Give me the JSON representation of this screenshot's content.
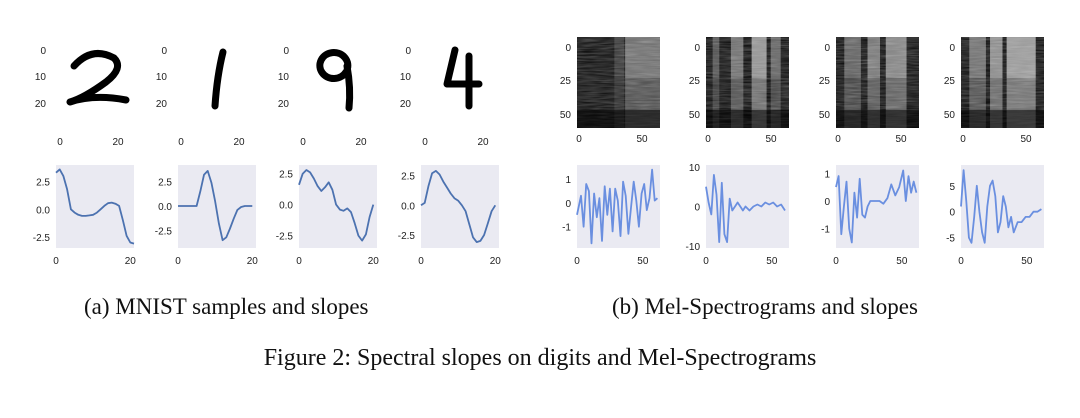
{
  "captions": {
    "sub_a": "(a) MNIST samples and slopes",
    "sub_b": "(b) Mel-Spectrograms and slopes",
    "main": "Figure 2: Spectral slopes on digits and Mel-Spectrograms"
  },
  "colors": {
    "line": "#4c72b0",
    "line_b": "#6a8fe0",
    "plot_bg": "#eaeaf2"
  },
  "image_panels": {
    "mnist": [
      {
        "digit": "2",
        "yticks": [
          "0",
          "10",
          "20"
        ],
        "xticks": [
          "0",
          "20"
        ]
      },
      {
        "digit": "1",
        "yticks": [
          "0",
          "10",
          "20"
        ],
        "xticks": [
          "0",
          "20"
        ]
      },
      {
        "digit": "9",
        "yticks": [
          "0",
          "10",
          "20"
        ],
        "xticks": [
          "0",
          "20"
        ]
      },
      {
        "digit": "4",
        "yticks": [
          "0",
          "10",
          "20"
        ],
        "xticks": [
          "0",
          "20"
        ]
      }
    ],
    "mel": [
      {
        "yticks": [
          "0",
          "25",
          "50"
        ],
        "xticks": [
          "0",
          "50"
        ]
      },
      {
        "yticks": [
          "0",
          "25",
          "50"
        ],
        "xticks": [
          "0",
          "50"
        ]
      },
      {
        "yticks": [
          "0",
          "25",
          "50"
        ],
        "xticks": [
          "0",
          "50"
        ]
      },
      {
        "yticks": [
          "0",
          "25",
          "50"
        ],
        "xticks": [
          "0",
          "50"
        ]
      }
    ]
  },
  "chart_data": [
    {
      "type": "line",
      "panel": "a1",
      "xlim": [
        0,
        21
      ],
      "ylim": [
        -3.5,
        4
      ],
      "yticks": [
        2.5,
        0.0,
        -2.5
      ],
      "ytick_labels": [
        "2.5",
        "0.0",
        "-2.5"
      ],
      "xticks": [
        0,
        20
      ],
      "xtick_labels": [
        "0",
        "20"
      ],
      "x": [
        0,
        1,
        2,
        3,
        4,
        5,
        6,
        7,
        8,
        9,
        10,
        11,
        12,
        13,
        14,
        15,
        16,
        17,
        18,
        19,
        20,
        21
      ],
      "y": [
        3.3,
        3.6,
        3.0,
        1.8,
        0.0,
        -0.3,
        -0.5,
        -0.6,
        -0.6,
        -0.55,
        -0.5,
        -0.3,
        0.0,
        0.3,
        0.55,
        0.6,
        0.5,
        0.3,
        -1.0,
        -2.4,
        -3.0,
        -3.1
      ]
    },
    {
      "type": "line",
      "panel": "a2",
      "xlim": [
        0,
        21
      ],
      "ylim": [
        -4.3,
        4.2
      ],
      "yticks": [
        2.5,
        0.0,
        -2.5
      ],
      "ytick_labels": [
        "2.5",
        "0.0",
        "-2.5"
      ],
      "xticks": [
        0,
        20
      ],
      "xtick_labels": [
        "0",
        "20"
      ],
      "x": [
        0,
        1,
        2,
        3,
        4,
        5,
        6,
        7,
        8,
        9,
        10,
        11,
        12,
        13,
        14,
        15,
        16,
        17,
        18,
        19,
        20
      ],
      "y": [
        0,
        0,
        0,
        0,
        0,
        0,
        1.5,
        3.2,
        3.6,
        2.4,
        0.5,
        -1.8,
        -3.5,
        -3.2,
        -2.3,
        -1.3,
        -0.4,
        -0.1,
        0,
        0,
        0
      ]
    },
    {
      "type": "line",
      "panel": "a3",
      "xlim": [
        0,
        21
      ],
      "ylim": [
        -3.5,
        3.2
      ],
      "yticks": [
        2.5,
        0.0,
        -2.5
      ],
      "ytick_labels": [
        "2.5",
        "0.0",
        "-2.5"
      ],
      "xticks": [
        0,
        20
      ],
      "xtick_labels": [
        "0",
        "20"
      ],
      "x": [
        0,
        1,
        2,
        3,
        4,
        5,
        6,
        7,
        8,
        9,
        10,
        11,
        12,
        13,
        14,
        15,
        16,
        17,
        18,
        19,
        20
      ],
      "y": [
        1.6,
        2.5,
        2.8,
        2.6,
        2.1,
        1.5,
        1.1,
        1.4,
        1.8,
        1.2,
        0.0,
        -0.4,
        -0.5,
        -0.3,
        -0.6,
        -1.5,
        -2.5,
        -2.9,
        -2.4,
        -1.0,
        0.0
      ]
    },
    {
      "type": "line",
      "panel": "a4",
      "xlim": [
        0,
        21
      ],
      "ylim": [
        -3.6,
        3.4
      ],
      "yticks": [
        2.5,
        0.0,
        -2.5
      ],
      "ytick_labels": [
        "2.5",
        "0.0",
        "-2.5"
      ],
      "xticks": [
        0,
        20
      ],
      "xtick_labels": [
        "0",
        "20"
      ],
      "x": [
        0,
        1,
        2,
        3,
        4,
        5,
        6,
        7,
        8,
        9,
        10,
        11,
        12,
        13,
        14,
        15,
        16,
        17,
        18,
        19,
        20
      ],
      "y": [
        0,
        0.2,
        1.6,
        2.7,
        2.9,
        2.6,
        2.0,
        1.5,
        1.0,
        0.6,
        0.4,
        0.0,
        -0.5,
        -1.6,
        -2.7,
        -3.1,
        -3.0,
        -2.5,
        -1.5,
        -0.5,
        0.0
      ]
    },
    {
      "type": "line",
      "panel": "b1",
      "xlim": [
        0,
        63
      ],
      "ylim": [
        -1.9,
        1.6
      ],
      "yticks": [
        1,
        0,
        -1
      ],
      "ytick_labels": [
        "1",
        "0",
        "-1"
      ],
      "xticks": [
        0,
        50
      ],
      "xtick_labels": [
        "0",
        "50"
      ],
      "x": [
        0,
        3,
        5,
        7,
        9,
        11,
        13,
        15,
        17,
        19,
        21,
        23,
        25,
        27,
        29,
        31,
        33,
        35,
        37,
        39,
        41,
        43,
        45,
        47,
        49,
        51,
        53,
        55,
        57,
        59,
        61
      ],
      "y": [
        -0.5,
        0.3,
        -1.0,
        0.8,
        0.5,
        -1.7,
        0.4,
        -0.6,
        0.2,
        -1.6,
        0.7,
        -0.5,
        0.6,
        -1.2,
        0.6,
        0.1,
        -1.4,
        0.9,
        0.3,
        -1.3,
        -0.2,
        0.9,
        0.1,
        -1.0,
        0.4,
        0.8,
        -0.3,
        0.2,
        1.4,
        0.1,
        0.2
      ]
    },
    {
      "type": "line",
      "panel": "b2",
      "xlim": [
        0,
        63
      ],
      "ylim": [
        -10.5,
        10.5
      ],
      "yticks": [
        10,
        0,
        -10
      ],
      "ytick_labels": [
        "10",
        "0",
        "-10"
      ],
      "xticks": [
        0,
        50
      ],
      "xtick_labels": [
        "0",
        "50"
      ],
      "x": [
        0,
        2,
        4,
        6,
        8,
        10,
        12,
        14,
        16,
        18,
        20,
        22,
        24,
        26,
        28,
        30,
        33,
        36,
        39,
        42,
        45,
        48,
        51,
        54,
        57,
        60
      ],
      "y": [
        5,
        1,
        -2,
        8,
        3,
        -9,
        6,
        -7,
        -9,
        2,
        -1,
        0,
        1,
        0,
        -1,
        0,
        -1,
        0,
        0.5,
        0,
        1,
        0.5,
        1,
        0,
        0.5,
        -1
      ]
    },
    {
      "type": "line",
      "panel": "b3",
      "xlim": [
        0,
        63
      ],
      "ylim": [
        -1.7,
        1.3
      ],
      "yticks": [
        1,
        0,
        -1
      ],
      "ytick_labels": [
        "1",
        "0",
        "-1"
      ],
      "xticks": [
        0,
        50
      ],
      "xtick_labels": [
        "0",
        "50"
      ],
      "x": [
        0,
        2,
        4,
        6,
        8,
        10,
        12,
        14,
        16,
        18,
        20,
        22,
        24,
        26,
        28,
        30,
        33,
        36,
        39,
        42,
        45,
        48,
        51,
        53,
        55,
        57,
        59,
        61
      ],
      "y": [
        0.5,
        0.9,
        -1.2,
        -0.2,
        0.7,
        -1.0,
        -1.5,
        0.3,
        -0.6,
        0.8,
        -0.5,
        -0.6,
        -0.2,
        0.0,
        0.0,
        0.0,
        0.0,
        -0.1,
        0.1,
        0.6,
        0.2,
        0.5,
        1.1,
        0.0,
        0.9,
        0.3,
        0.7,
        0.3
      ]
    },
    {
      "type": "line",
      "panel": "b4",
      "xlim": [
        0,
        63
      ],
      "ylim": [
        -7,
        9
      ],
      "yticks": [
        5,
        0,
        -5
      ],
      "ytick_labels": [
        "5",
        "0",
        "-5"
      ],
      "xticks": [
        0,
        50
      ],
      "xtick_labels": [
        "0",
        "50"
      ],
      "x": [
        0,
        2,
        4,
        6,
        8,
        10,
        12,
        14,
        16,
        18,
        20,
        22,
        24,
        26,
        28,
        30,
        32,
        34,
        36,
        38,
        40,
        43,
        46,
        49,
        52,
        55,
        58,
        61
      ],
      "y": [
        1,
        8,
        2,
        -5,
        -6,
        -1,
        5,
        0,
        -4,
        -6,
        1,
        5,
        6,
        3,
        -4,
        -2,
        3,
        1,
        -3,
        -1,
        -4,
        -2,
        -2,
        -1,
        -1,
        0,
        0,
        0.5
      ]
    }
  ]
}
